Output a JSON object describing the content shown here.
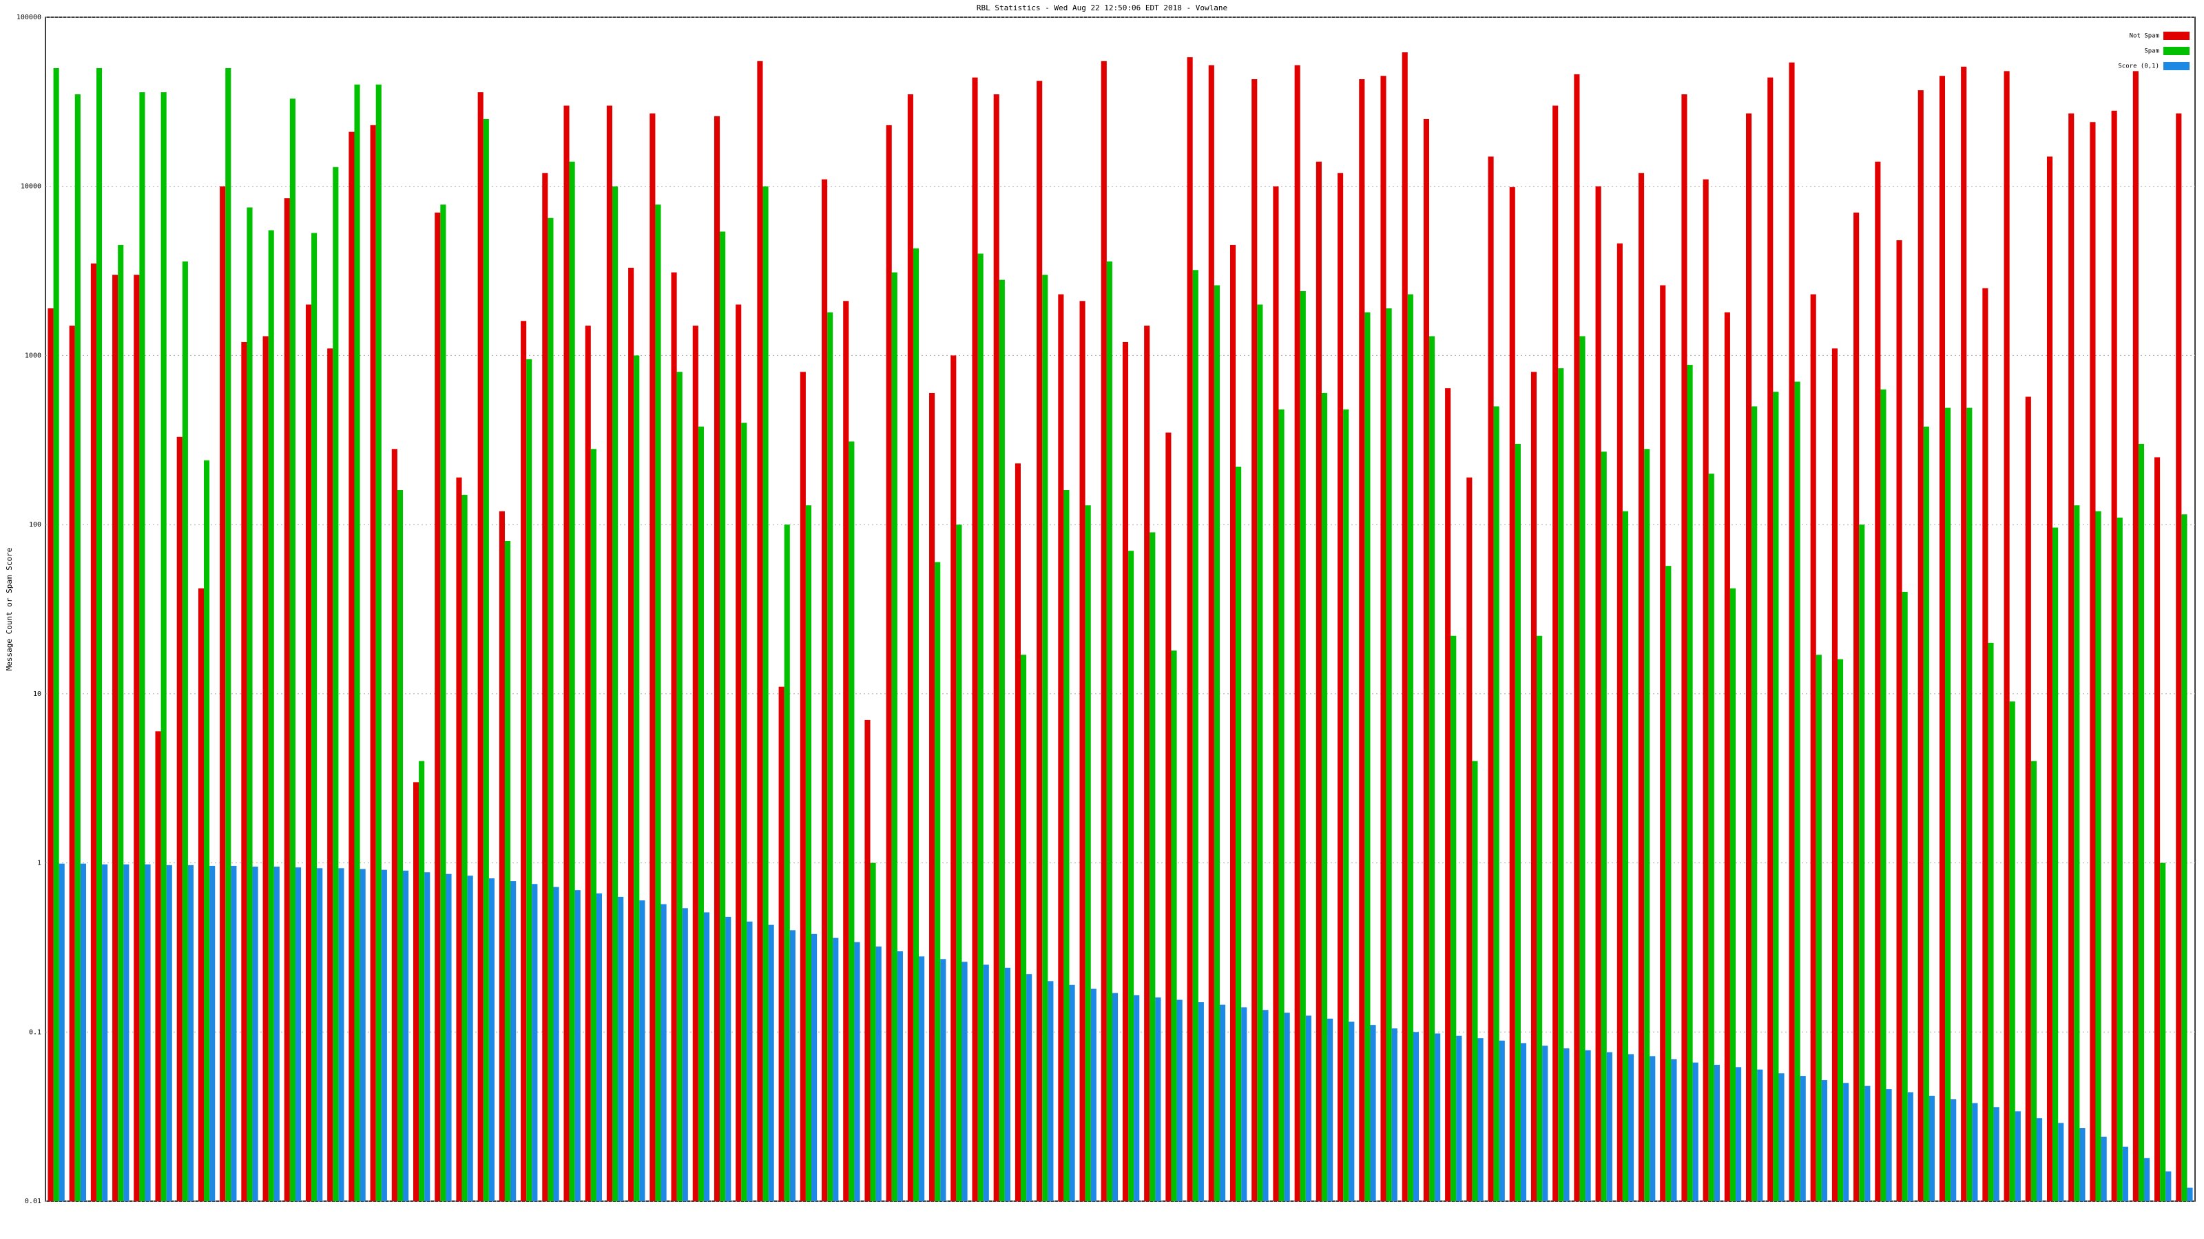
{
  "chart_data": {
    "type": "bar",
    "title": "RBL Statistics - Wed Aug 22 12:50:06 EDT 2018 - Vowlane",
    "y_label": "Message Count or Spam Score",
    "log_scale": true,
    "grid": true,
    "legend": "top-right",
    "ylim": [
      0.01,
      100000
    ],
    "yticks": [
      0.01,
      0.1,
      1,
      10,
      100,
      1000,
      10000,
      100000
    ],
    "categories": [
      null,
      null,
      null,
      null,
      null,
      null,
      null,
      null,
      null,
      null,
      null,
      null,
      null,
      null,
      null,
      null,
      null,
      null,
      null,
      null,
      null,
      null,
      null,
      null,
      null,
      null,
      null,
      null,
      null,
      null,
      null,
      null,
      null,
      null,
      null,
      null,
      null,
      null,
      null,
      null,
      null,
      null,
      null,
      null,
      null,
      null,
      null,
      null,
      null,
      null,
      null,
      null,
      null,
      null,
      null,
      null,
      null,
      null,
      null,
      null,
      null,
      null,
      null,
      null,
      null,
      null,
      null,
      null,
      null,
      null,
      null,
      null,
      null,
      null,
      null,
      null,
      null,
      null,
      null,
      null,
      null,
      null,
      null,
      null,
      null,
      null,
      null,
      null,
      null,
      null,
      null,
      null,
      null,
      null,
      null,
      null,
      null,
      null,
      null,
      null
    ],
    "series": [
      {
        "name": "Not Spam",
        "color": "#e00000",
        "values": [
          1900,
          1500,
          3500,
          3000,
          3000,
          6,
          330,
          42,
          10000,
          1200,
          1300,
          8500,
          2000,
          1100,
          21000,
          23000,
          280,
          3,
          7000,
          190,
          36000,
          120,
          1600,
          12000,
          30000,
          1500,
          30000,
          3300,
          27000,
          3100,
          1500,
          26000,
          2000,
          55000,
          11,
          800,
          11000,
          2100,
          7,
          23000,
          35000,
          600,
          1000,
          44000,
          35000,
          230,
          42000,
          2300,
          2100,
          55000,
          1200,
          1500,
          350,
          58000,
          52000,
          4500,
          43000,
          10000,
          52000,
          14000,
          12000,
          43000,
          45000,
          62000,
          25000,
          640,
          190,
          15000,
          9900,
          800,
          30000,
          46000,
          10000,
          4600,
          12000,
          2600,
          35000,
          11000,
          1800,
          27000,
          44000,
          54000,
          2300,
          1100,
          7000,
          14000,
          4800,
          37000,
          45000,
          51000,
          2500,
          48000,
          570,
          15000,
          27000,
          24000,
          28000,
          48000,
          250,
          27000
        ]
      },
      {
        "name": "Spam",
        "color": "#00c000",
        "values": [
          50000,
          35000,
          50000,
          4500,
          36000,
          36000,
          3600,
          240,
          50000,
          7500,
          5500,
          33000,
          5300,
          13000,
          40000,
          40000,
          160,
          4,
          7800,
          150,
          25000,
          80,
          950,
          6500,
          14000,
          280,
          10000,
          1000,
          7800,
          800,
          380,
          5400,
          400,
          10000,
          100,
          130,
          1800,
          310,
          1,
          3100,
          4300,
          60,
          100,
          4000,
          2800,
          17,
          3000,
          160,
          130,
          3600,
          70,
          90,
          18,
          3200,
          2600,
          220,
          2000,
          480,
          2400,
          600,
          480,
          1800,
          1900,
          2300,
          1300,
          22,
          4,
          500,
          300,
          22,
          840,
          1300,
          270,
          120,
          280,
          57,
          880,
          200,
          42,
          500,
          610,
          700,
          17,
          16,
          100,
          630,
          40,
          380,
          490,
          490,
          20,
          9,
          4,
          96,
          130,
          120,
          110,
          300,
          1,
          115
        ]
      },
      {
        "name": "Score (0,1)",
        "color": "#1e88e5",
        "values": [
          0.99,
          0.99,
          0.98,
          0.98,
          0.98,
          0.97,
          0.97,
          0.96,
          0.96,
          0.95,
          0.95,
          0.94,
          0.93,
          0.93,
          0.92,
          0.91,
          0.9,
          0.88,
          0.86,
          0.84,
          0.81,
          0.78,
          0.75,
          0.72,
          0.69,
          0.66,
          0.63,
          0.6,
          0.57,
          0.54,
          0.51,
          0.48,
          0.45,
          0.43,
          0.4,
          0.38,
          0.36,
          0.34,
          0.32,
          0.3,
          0.28,
          0.27,
          0.26,
          0.25,
          0.24,
          0.22,
          0.2,
          0.19,
          0.18,
          0.17,
          0.165,
          0.16,
          0.155,
          0.15,
          0.145,
          0.14,
          0.135,
          0.13,
          0.125,
          0.12,
          0.115,
          0.11,
          0.105,
          0.1,
          0.098,
          0.095,
          0.092,
          0.089,
          0.086,
          0.083,
          0.08,
          0.078,
          0.076,
          0.074,
          0.072,
          0.069,
          0.066,
          0.064,
          0.062,
          0.06,
          0.057,
          0.055,
          0.052,
          0.05,
          0.048,
          0.046,
          0.044,
          0.042,
          0.04,
          0.038,
          0.036,
          0.034,
          0.031,
          0.029,
          0.027,
          0.024,
          0.021,
          0.018,
          0.015,
          0.012
        ]
      }
    ]
  }
}
